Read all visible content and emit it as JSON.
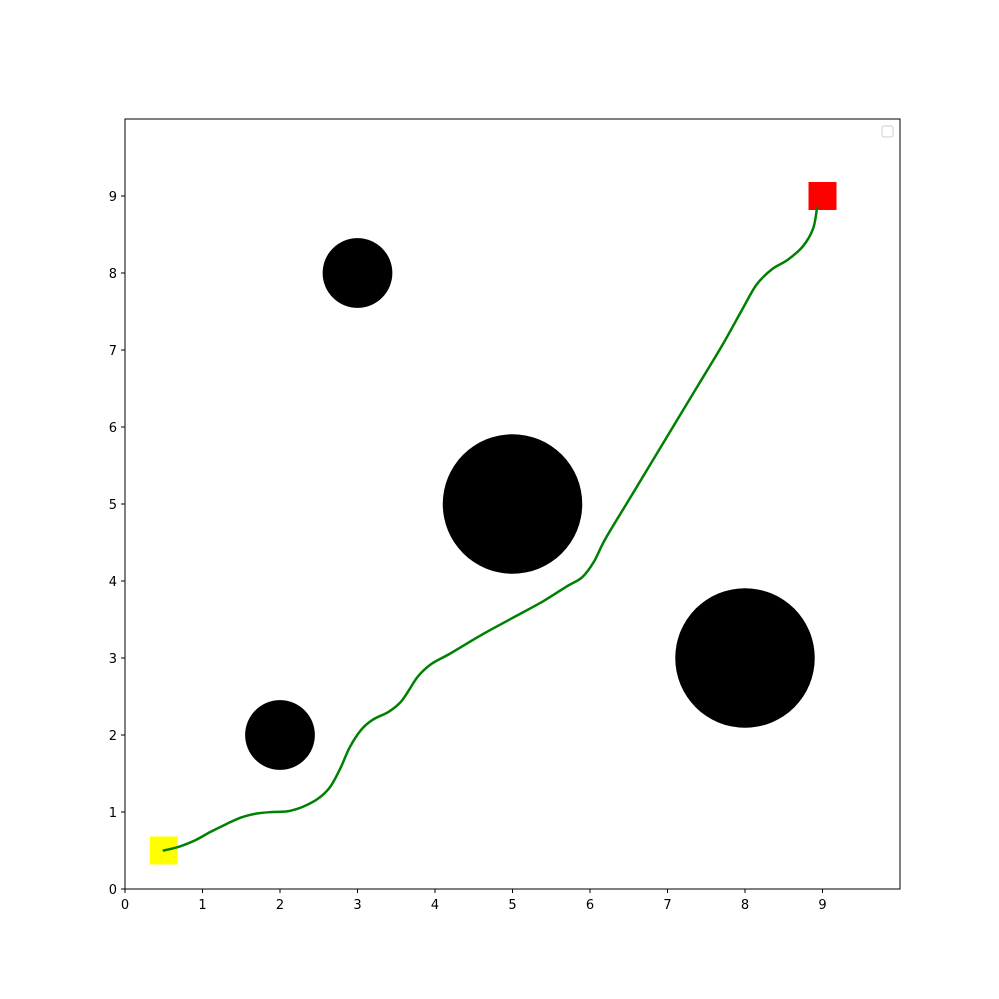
{
  "chart_data": {
    "type": "scatter",
    "title": "",
    "xlabel": "",
    "ylabel": "",
    "xlim": [
      0,
      10
    ],
    "ylim": [
      0,
      10
    ],
    "x_ticks": [
      0,
      1,
      2,
      3,
      4,
      5,
      6,
      7,
      8,
      9
    ],
    "y_ticks": [
      0,
      1,
      2,
      3,
      4,
      5,
      6,
      7,
      8,
      9
    ],
    "grid": false,
    "legend": {
      "placement": "upper right",
      "entries": []
    },
    "obstacles": [
      {
        "center": [
          3,
          8
        ],
        "radius": 0.45,
        "color": "#000000"
      },
      {
        "center": [
          2,
          2
        ],
        "radius": 0.45,
        "color": "#000000"
      },
      {
        "center": [
          5,
          5
        ],
        "radius": 0.9,
        "color": "#000000"
      },
      {
        "center": [
          8,
          3
        ],
        "radius": 0.9,
        "color": "#000000"
      }
    ],
    "start": {
      "point": [
        0.5,
        0.5
      ],
      "color": "#ffff00"
    },
    "goal": {
      "point": [
        9.0,
        9.0
      ],
      "color": "#ff0000"
    },
    "path": {
      "color": "#008000",
      "points": [
        [
          0.5,
          0.5
        ],
        [
          0.7,
          0.55
        ],
        [
          0.9,
          0.63
        ],
        [
          1.1,
          0.74
        ],
        [
          1.3,
          0.84
        ],
        [
          1.5,
          0.93
        ],
        [
          1.7,
          0.98
        ],
        [
          1.9,
          1.0
        ],
        [
          2.1,
          1.01
        ],
        [
          2.3,
          1.07
        ],
        [
          2.5,
          1.18
        ],
        [
          2.65,
          1.33
        ],
        [
          2.78,
          1.57
        ],
        [
          2.9,
          1.84
        ],
        [
          3.05,
          2.07
        ],
        [
          3.2,
          2.2
        ],
        [
          3.4,
          2.3
        ],
        [
          3.55,
          2.42
        ],
        [
          3.65,
          2.56
        ],
        [
          3.78,
          2.76
        ],
        [
          3.95,
          2.92
        ],
        [
          4.2,
          3.06
        ],
        [
          4.6,
          3.3
        ],
        [
          5.0,
          3.52
        ],
        [
          5.4,
          3.74
        ],
        [
          5.7,
          3.93
        ],
        [
          5.9,
          4.05
        ],
        [
          6.05,
          4.25
        ],
        [
          6.2,
          4.55
        ],
        [
          6.5,
          5.05
        ],
        [
          6.8,
          5.55
        ],
        [
          7.1,
          6.05
        ],
        [
          7.4,
          6.55
        ],
        [
          7.7,
          7.05
        ],
        [
          7.95,
          7.5
        ],
        [
          8.15,
          7.85
        ],
        [
          8.35,
          8.05
        ],
        [
          8.55,
          8.17
        ],
        [
          8.75,
          8.35
        ],
        [
          8.88,
          8.58
        ],
        [
          8.93,
          8.85
        ]
      ]
    }
  }
}
